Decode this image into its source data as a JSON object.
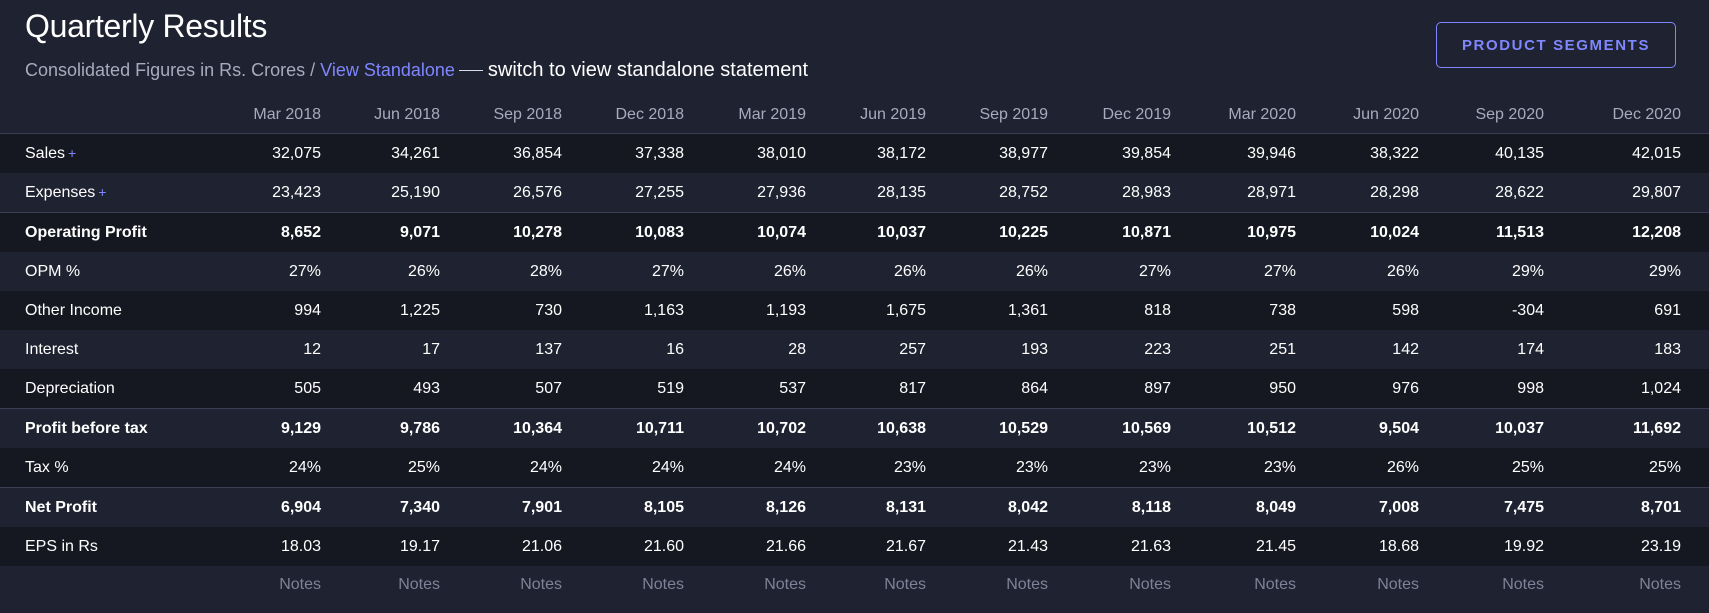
{
  "header": {
    "title": "Quarterly Results",
    "subtitle_text": "Consolidated Figures in Rs. Crores",
    "subtitle_sep": " / ",
    "view_standalone_label": "View Standalone",
    "annotation": "switch to view standalone statement",
    "product_segments_label": "PRODUCT SEGMENTS"
  },
  "columns": [
    "Mar 2018",
    "Jun 2018",
    "Sep 2018",
    "Dec 2018",
    "Mar 2019",
    "Jun 2019",
    "Sep 2019",
    "Dec 2019",
    "Mar 2020",
    "Jun 2020",
    "Sep 2020",
    "Dec 2020"
  ],
  "rows": [
    {
      "label": "Sales",
      "plus": "+",
      "strong": false,
      "values": [
        "32,075",
        "34,261",
        "36,854",
        "37,338",
        "38,010",
        "38,172",
        "38,977",
        "39,854",
        "39,946",
        "38,322",
        "40,135",
        "42,015"
      ]
    },
    {
      "label": "Expenses",
      "plus": "+",
      "strong": false,
      "values": [
        "23,423",
        "25,190",
        "26,576",
        "27,255",
        "27,936",
        "28,135",
        "28,752",
        "28,983",
        "28,971",
        "28,298",
        "28,622",
        "29,807"
      ]
    },
    {
      "label": "Operating Profit",
      "strong": true,
      "values": [
        "8,652",
        "9,071",
        "10,278",
        "10,083",
        "10,074",
        "10,037",
        "10,225",
        "10,871",
        "10,975",
        "10,024",
        "11,513",
        "12,208"
      ]
    },
    {
      "label": "OPM %",
      "strong": false,
      "values": [
        "27%",
        "26%",
        "28%",
        "27%",
        "26%",
        "26%",
        "26%",
        "27%",
        "27%",
        "26%",
        "29%",
        "29%"
      ]
    },
    {
      "label": "Other Income",
      "strong": false,
      "values": [
        "994",
        "1,225",
        "730",
        "1,163",
        "1,193",
        "1,675",
        "1,361",
        "818",
        "738",
        "598",
        "-304",
        "691"
      ]
    },
    {
      "label": "Interest",
      "strong": false,
      "values": [
        "12",
        "17",
        "137",
        "16",
        "28",
        "257",
        "193",
        "223",
        "251",
        "142",
        "174",
        "183"
      ]
    },
    {
      "label": "Depreciation",
      "strong": false,
      "values": [
        "505",
        "493",
        "507",
        "519",
        "537",
        "817",
        "864",
        "897",
        "950",
        "976",
        "998",
        "1,024"
      ]
    },
    {
      "label": "Profit before tax",
      "strong": true,
      "values": [
        "9,129",
        "9,786",
        "10,364",
        "10,711",
        "10,702",
        "10,638",
        "10,529",
        "10,569",
        "10,512",
        "9,504",
        "10,037",
        "11,692"
      ]
    },
    {
      "label": "Tax %",
      "strong": false,
      "values": [
        "24%",
        "25%",
        "24%",
        "24%",
        "24%",
        "23%",
        "23%",
        "23%",
        "23%",
        "26%",
        "25%",
        "25%"
      ]
    },
    {
      "label": "Net Profit",
      "strong": true,
      "values": [
        "6,904",
        "7,340",
        "7,901",
        "8,105",
        "8,126",
        "8,131",
        "8,042",
        "8,118",
        "8,049",
        "7,008",
        "7,475",
        "8,701"
      ]
    },
    {
      "label": "EPS in Rs",
      "strong": false,
      "values": [
        "18.03",
        "19.17",
        "21.06",
        "21.60",
        "21.66",
        "21.67",
        "21.43",
        "21.63",
        "21.45",
        "18.68",
        "19.92",
        "23.19"
      ]
    }
  ],
  "notes_label": "Notes",
  "colors": {
    "background": "#1f2230",
    "stripe": "#161821",
    "accent": "#7f87ff",
    "muted_text": "#a6abbd"
  }
}
